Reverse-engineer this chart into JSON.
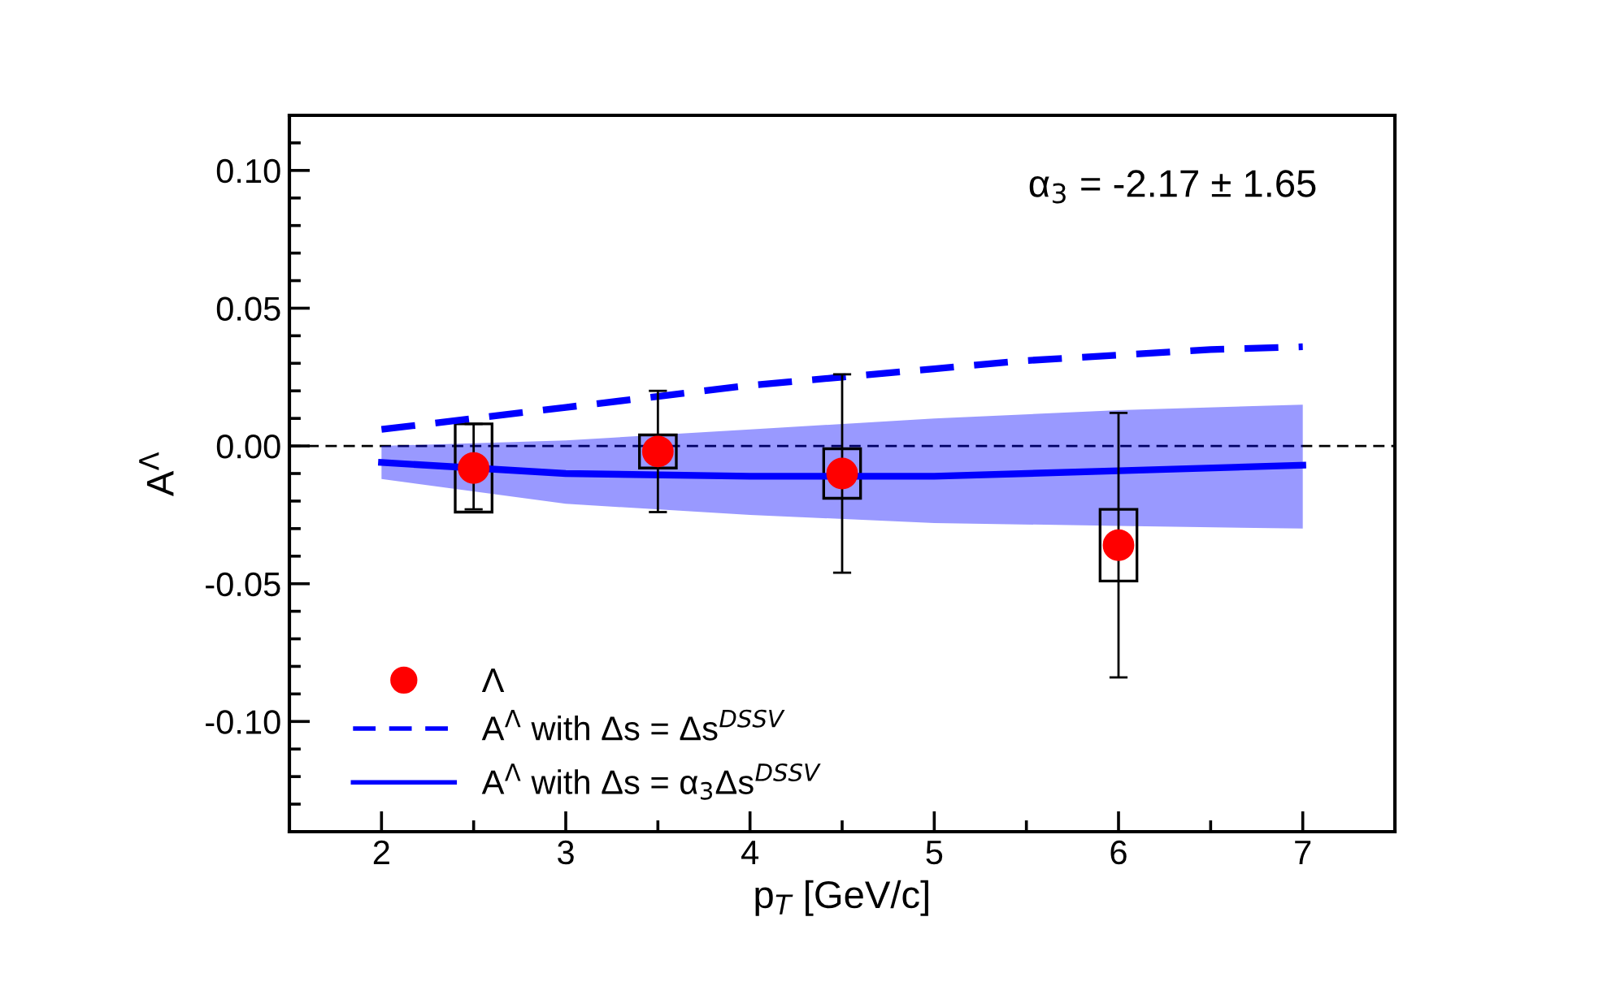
{
  "chart_data": {
    "type": "line",
    "xlabel": "p$_{T}$ [GeV/c]",
    "ylabel": "A$^{Λ}$",
    "xlim": [
      1.5,
      7.5
    ],
    "xticks": [
      2,
      3,
      4,
      5,
      6,
      7
    ],
    "ylim": [
      -0.14,
      0.12
    ],
    "yticks": [
      {
        "value": -0.1,
        "label": "-0.10"
      },
      -0.05,
      {
        "value": 0,
        "label": "0.00"
      },
      0.05,
      {
        "value": 0.1,
        "label": "0.10"
      }
    ],
    "grid": false,
    "legend": "bottom left",
    "annotations": [
      "α$_{3}$ = -2.17 ± 1.65"
    ],
    "ref_lines": [
      {
        "axis": "y",
        "value": 0,
        "color": "#000000",
        "line_style": "dashed"
      }
    ],
    "series": [
      {
        "type": "bar",
        "color": "#000000",
        "x": [
          2.5,
          3.5,
          4.5,
          6
        ],
        "base": [
          -0.024,
          -0.008,
          -0.019,
          -0.049
        ],
        "values": [
          0.032,
          0.012,
          0.018,
          0.026
        ]
      },
      {
        "type": "line",
        "name": "A$^{Λ}$ with Δs = Δs$^{DSSV}$",
        "color": "#0000ff",
        "line_style": "dashed",
        "x": [
          2,
          2.5,
          3,
          3.5,
          4,
          4.5,
          5,
          5.5,
          6,
          6.5,
          7
        ],
        "values": [
          0.006,
          0.01,
          0.014,
          0.018,
          0.022,
          0.025,
          0.028,
          0.031,
          0.033,
          0.035,
          0.036
        ]
      },
      {
        "name": "A$^{Λ}$ with Δs = α$_{3}$Δs$^{DSSV}$",
        "color": "#0000ff",
        "line_style": "solid",
        "x": [
          2,
          3,
          4,
          5,
          6,
          7
        ],
        "values": [
          -0.006,
          -0.01,
          -0.011,
          -0.011,
          -0.009,
          -0.007
        ],
        "lower": [
          -0.012,
          -0.021,
          -0.025,
          -0.028,
          -0.029,
          -0.03
        ],
        "upper": [
          0.0,
          0.002,
          0.006,
          0.01,
          0.013,
          0.015
        ]
      },
      {
        "type": "scatter",
        "name": "Λ",
        "color": "#ff0000",
        "marker": "circle",
        "x": [
          2.5,
          3.5,
          4.5,
          6
        ],
        "values": [
          -0.008,
          -0.002,
          -0.01,
          -0.036
        ],
        "errors": [
          [
            -0.023,
            0.008
          ],
          [
            -0.024,
            0.02
          ],
          [
            -0.046,
            0.026
          ],
          [
            -0.084,
            0.012
          ]
        ]
      }
    ]
  }
}
